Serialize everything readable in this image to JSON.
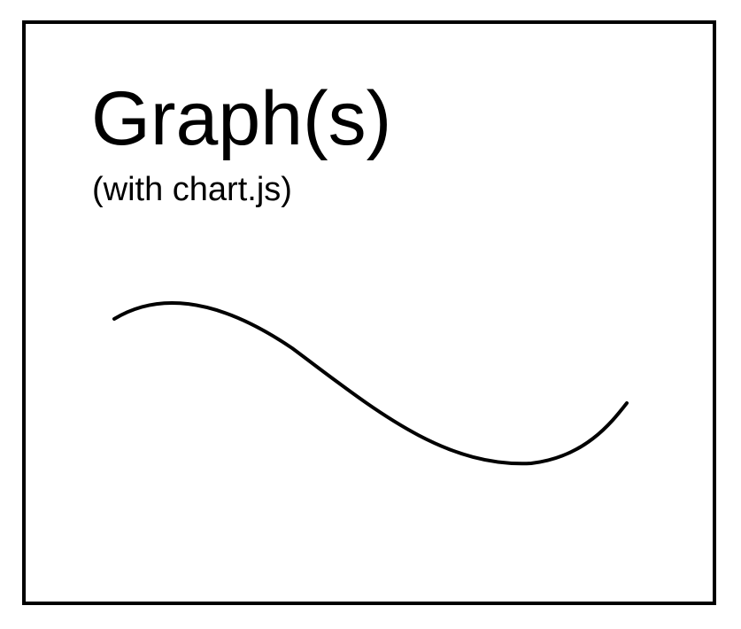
{
  "card": {
    "title": "Graph(s)",
    "subtitle": "(with chart.js)"
  },
  "illustration": {
    "icon": "wave-curve-icon",
    "stroke_color": "#000000"
  },
  "colors": {
    "border": "#000000",
    "background": "#ffffff",
    "text": "#000000"
  }
}
